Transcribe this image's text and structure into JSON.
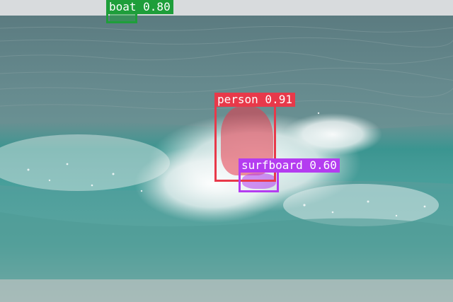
{
  "detections": [
    {
      "label": "boat 0.80",
      "class": "boat",
      "confidence": 0.8,
      "color": "#1e9e3a"
    },
    {
      "label": "person 0.91",
      "class": "person",
      "confidence": 0.91,
      "color": "#e8394a"
    },
    {
      "label": "surfboard 0.60",
      "class": "surfboard",
      "confidence": 0.6,
      "color": "#b43cf0"
    }
  ],
  "colors": {
    "sky": "#d9dcde",
    "sea_far": "#587a80",
    "sea_mid": "#6d9095",
    "wave_green": "#3f9c9a",
    "foam": "#eef3f3",
    "shore": "#a9bdbb"
  }
}
